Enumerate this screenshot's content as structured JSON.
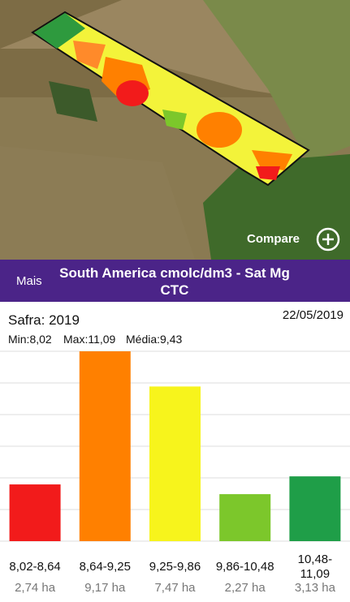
{
  "header": {
    "menu": "Mais",
    "title": "South America cmolc/dm3 - Sat Mg CTC"
  },
  "map": {
    "compare": "Compare"
  },
  "info": {
    "safra": "Safra: 2019",
    "date": "22/05/2019",
    "min": "Min:8,02",
    "max": "Max:11,09",
    "mean": "Média:9,43"
  },
  "chart_data": {
    "type": "bar",
    "categories": [
      "8,02-8,64",
      "8,64-9,25",
      "9,25-9,86",
      "9,86-10,48",
      "10,48-11,09"
    ],
    "values": [
      2.74,
      9.17,
      7.47,
      2.27,
      3.13
    ],
    "value_labels": [
      "2,74 ha",
      "9,17 ha",
      "7,47 ha",
      "2,27 ha",
      "3,13 ha"
    ],
    "colors": [
      "#f21b1b",
      "#ff8000",
      "#f7f41c",
      "#7cc72b",
      "#1f9e48"
    ],
    "ylim": [
      0,
      9.17
    ],
    "grid": true
  }
}
